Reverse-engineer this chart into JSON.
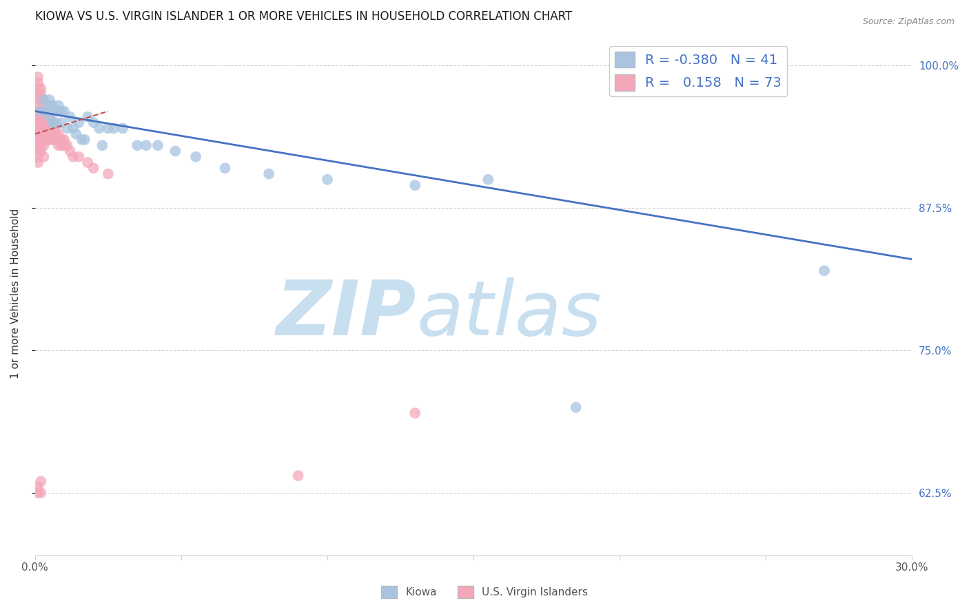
{
  "title": "KIOWA VS U.S. VIRGIN ISLANDER 1 OR MORE VEHICLES IN HOUSEHOLD CORRELATION CHART",
  "source": "Source: ZipAtlas.com",
  "ylabel": "1 or more Vehicles in Household",
  "xlim": [
    0.0,
    0.3
  ],
  "ylim": [
    0.57,
    1.03
  ],
  "yticks": [
    0.625,
    0.75,
    0.875,
    1.0
  ],
  "ytick_labels": [
    "62.5%",
    "75.0%",
    "87.5%",
    "100.0%"
  ],
  "xticks": [
    0.0,
    0.05,
    0.1,
    0.15,
    0.2,
    0.25,
    0.3
  ],
  "xtick_labels": [
    "0.0%",
    "",
    "",
    "",
    "",
    "",
    "30.0%"
  ],
  "legend_R_kiowa": "-0.380",
  "legend_N_kiowa": "41",
  "legend_R_virgin": "0.158",
  "legend_N_virgin": "73",
  "kiowa_color": "#a8c4e0",
  "virgin_color": "#f4a7b9",
  "trendline_kiowa_color": "#4472c4",
  "trendline_virgin_color": "#c0504d",
  "background_color": "#ffffff",
  "grid_color": "#d0d0d0",
  "title_color": "#1a1a1a",
  "axis_label_color": "#333333",
  "right_tick_color": "#4472c4",
  "kiowa_x": [
    0.002,
    0.003,
    0.004,
    0.005,
    0.005,
    0.006,
    0.007,
    0.008,
    0.008,
    0.009,
    0.01,
    0.012,
    0.013,
    0.015,
    0.016,
    0.018,
    0.02,
    0.022,
    0.025,
    0.027,
    0.03,
    0.035,
    0.038,
    0.042,
    0.048,
    0.055,
    0.065,
    0.08,
    0.1,
    0.13,
    0.155,
    0.185,
    0.005,
    0.006,
    0.007,
    0.009,
    0.011,
    0.014,
    0.017,
    0.023,
    0.27
  ],
  "kiowa_y": [
    0.96,
    0.97,
    0.96,
    0.97,
    0.965,
    0.965,
    0.96,
    0.96,
    0.965,
    0.96,
    0.96,
    0.955,
    0.945,
    0.95,
    0.935,
    0.955,
    0.95,
    0.945,
    0.945,
    0.945,
    0.945,
    0.93,
    0.93,
    0.93,
    0.925,
    0.92,
    0.91,
    0.905,
    0.9,
    0.895,
    0.9,
    0.7,
    0.955,
    0.95,
    0.95,
    0.95,
    0.945,
    0.94,
    0.935,
    0.93,
    0.82
  ],
  "virgin_x": [
    0.001,
    0.001,
    0.001,
    0.001,
    0.001,
    0.001,
    0.001,
    0.001,
    0.001,
    0.001,
    0.001,
    0.001,
    0.001,
    0.001,
    0.001,
    0.001,
    0.002,
    0.002,
    0.002,
    0.002,
    0.002,
    0.002,
    0.002,
    0.002,
    0.002,
    0.002,
    0.002,
    0.003,
    0.003,
    0.003,
    0.003,
    0.003,
    0.003,
    0.003,
    0.003,
    0.004,
    0.004,
    0.004,
    0.004,
    0.004,
    0.004,
    0.005,
    0.005,
    0.005,
    0.005,
    0.005,
    0.006,
    0.006,
    0.006,
    0.006,
    0.007,
    0.007,
    0.007,
    0.008,
    0.008,
    0.008,
    0.009,
    0.009,
    0.01,
    0.01,
    0.011,
    0.012,
    0.013,
    0.015,
    0.018,
    0.02,
    0.025,
    0.001,
    0.001,
    0.002,
    0.002,
    0.09,
    0.13
  ],
  "virgin_y": [
    0.99,
    0.985,
    0.98,
    0.975,
    0.97,
    0.965,
    0.96,
    0.955,
    0.95,
    0.945,
    0.94,
    0.935,
    0.93,
    0.925,
    0.92,
    0.915,
    0.98,
    0.975,
    0.97,
    0.96,
    0.955,
    0.95,
    0.945,
    0.94,
    0.935,
    0.93,
    0.925,
    0.97,
    0.965,
    0.96,
    0.955,
    0.95,
    0.945,
    0.93,
    0.92,
    0.96,
    0.955,
    0.95,
    0.945,
    0.94,
    0.935,
    0.955,
    0.95,
    0.945,
    0.94,
    0.935,
    0.95,
    0.945,
    0.94,
    0.935,
    0.945,
    0.94,
    0.935,
    0.94,
    0.935,
    0.93,
    0.935,
    0.93,
    0.935,
    0.93,
    0.93,
    0.925,
    0.92,
    0.92,
    0.915,
    0.91,
    0.905,
    0.63,
    0.625,
    0.625,
    0.635,
    0.64,
    0.695
  ],
  "trendline_kiowa_x0": 0.0,
  "trendline_kiowa_x1": 0.3,
  "trendline_kiowa_y0": 0.96,
  "trendline_kiowa_y1": 0.83,
  "trendline_virgin_x0": 0.0,
  "trendline_virgin_x1": 0.025,
  "trendline_virgin_y0": 0.94,
  "trendline_virgin_y1": 0.96
}
